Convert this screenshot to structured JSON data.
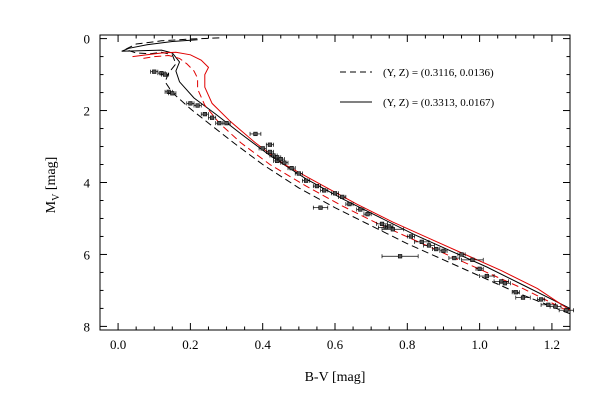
{
  "chart_data": {
    "type": "scatter",
    "title": "",
    "xlabel": "B-V [mag]",
    "ylabel_main": "M",
    "ylabel_sub": "V",
    "ylabel_tail": " [mag]",
    "xlim": [
      -0.05,
      1.25
    ],
    "ylim": [
      8.1,
      -0.1
    ],
    "y_inverted": true,
    "x_ticks": [
      0.0,
      0.2,
      0.4,
      0.6,
      0.8,
      1.0,
      1.2
    ],
    "x_tick_labels": [
      "0.0",
      "0.2",
      "0.4",
      "0.6",
      "0.8",
      "1.0",
      "1.2"
    ],
    "y_ticks": [
      0,
      2,
      4,
      6,
      8
    ],
    "y_tick_labels": [
      "0",
      "2",
      "4",
      "6",
      "8"
    ],
    "grid": false,
    "legend_position": "top-right",
    "legend": [
      {
        "label": "(Y, Z) = (0.3116, 0.0136)",
        "style": "dashed",
        "color": "#000000"
      },
      {
        "label": "(Y, Z) = (0.3313, 0.0167)",
        "style": "solid",
        "color": "#000000"
      }
    ],
    "series": [
      {
        "style": "dashed",
        "color": "#000000",
        "x": [
          0.28,
          0.2,
          0.12,
          0.05,
          0.02,
          0.05,
          0.09,
          0.12,
          0.15,
          0.16,
          0.14,
          0.13,
          0.15,
          0.2,
          0.25,
          0.32,
          0.4,
          0.5,
          0.6,
          0.7,
          0.8,
          0.9,
          1.0,
          1.1,
          1.2,
          1.25
        ],
        "y": [
          -0.02,
          0.01,
          0.06,
          0.15,
          0.3,
          0.4,
          0.42,
          0.38,
          0.45,
          0.7,
          0.95,
          1.2,
          1.5,
          1.95,
          2.35,
          2.9,
          3.5,
          4.15,
          4.7,
          5.2,
          5.7,
          6.15,
          6.6,
          7.05,
          7.45,
          7.65
        ]
      },
      {
        "style": "solid",
        "color": "#000000",
        "x": [
          0.22,
          0.15,
          0.08,
          0.03,
          0.01,
          0.06,
          0.12,
          0.15,
          0.17,
          0.16,
          0.17,
          0.21,
          0.27,
          0.34,
          0.42,
          0.52,
          0.62,
          0.72,
          0.82,
          0.92,
          1.02,
          1.12,
          1.21,
          1.25
        ],
        "y": [
          0.03,
          0.08,
          0.17,
          0.27,
          0.35,
          0.34,
          0.32,
          0.4,
          0.65,
          0.9,
          1.2,
          1.65,
          2.1,
          2.65,
          3.25,
          3.9,
          4.45,
          4.95,
          5.45,
          5.9,
          6.35,
          6.85,
          7.3,
          7.5
        ]
      },
      {
        "style": "dashed",
        "color": "#e00000",
        "x": [
          0.07,
          0.1,
          0.14,
          0.17,
          0.19,
          0.21,
          0.22,
          0.22,
          0.24,
          0.28,
          0.34,
          0.42,
          0.52,
          0.62,
          0.72,
          0.82,
          0.92,
          1.02,
          1.12,
          1.2,
          1.25
        ],
        "y": [
          0.55,
          0.5,
          0.47,
          0.55,
          0.7,
          0.9,
          1.1,
          1.4,
          1.85,
          2.35,
          2.9,
          3.5,
          4.1,
          4.65,
          5.15,
          5.6,
          6.05,
          6.5,
          6.95,
          7.35,
          7.6
        ]
      },
      {
        "style": "solid",
        "color": "#e00000",
        "x": [
          0.04,
          0.08,
          0.12,
          0.16,
          0.2,
          0.23,
          0.25,
          0.24,
          0.24,
          0.26,
          0.31,
          0.38,
          0.46,
          0.56,
          0.66,
          0.76,
          0.86,
          0.96,
          1.06,
          1.16,
          1.25
        ],
        "y": [
          0.5,
          0.45,
          0.4,
          0.38,
          0.45,
          0.6,
          0.8,
          1.0,
          1.35,
          1.8,
          2.3,
          2.9,
          3.5,
          4.05,
          4.6,
          5.1,
          5.55,
          6.0,
          6.45,
          6.95,
          7.55
        ]
      }
    ],
    "points": [
      {
        "x": 0.1,
        "y": 0.92,
        "xerr": 0.01
      },
      {
        "x": 0.12,
        "y": 0.96,
        "xerr": 0.01
      },
      {
        "x": 0.13,
        "y": 1.0,
        "xerr": 0.01
      },
      {
        "x": 0.14,
        "y": 1.48,
        "xerr": 0.01
      },
      {
        "x": 0.15,
        "y": 1.52,
        "xerr": 0.01
      },
      {
        "x": 0.2,
        "y": 1.8,
        "xerr": 0.01
      },
      {
        "x": 0.22,
        "y": 1.86,
        "xerr": 0.01
      },
      {
        "x": 0.24,
        "y": 2.1,
        "xerr": 0.01
      },
      {
        "x": 0.26,
        "y": 2.2,
        "xerr": 0.01
      },
      {
        "x": 0.28,
        "y": 2.35,
        "xerr": 0.01
      },
      {
        "x": 0.3,
        "y": 2.35,
        "xerr": 0.01
      },
      {
        "x": 0.38,
        "y": 2.65,
        "xerr": 0.015
      },
      {
        "x": 0.42,
        "y": 2.95,
        "xerr": 0.01
      },
      {
        "x": 0.4,
        "y": 3.05,
        "xerr": 0.01
      },
      {
        "x": 0.42,
        "y": 3.15,
        "xerr": 0.01
      },
      {
        "x": 0.43,
        "y": 3.25,
        "xerr": 0.01
      },
      {
        "x": 0.44,
        "y": 3.3,
        "xerr": 0.01
      },
      {
        "x": 0.44,
        "y": 3.4,
        "xerr": 0.01
      },
      {
        "x": 0.45,
        "y": 3.35,
        "xerr": 0.01
      },
      {
        "x": 0.46,
        "y": 3.45,
        "xerr": 0.01
      },
      {
        "x": 0.48,
        "y": 3.6,
        "xerr": 0.01
      },
      {
        "x": 0.5,
        "y": 3.75,
        "xerr": 0.01
      },
      {
        "x": 0.52,
        "y": 3.95,
        "xerr": 0.01
      },
      {
        "x": 0.55,
        "y": 4.1,
        "xerr": 0.01
      },
      {
        "x": 0.57,
        "y": 4.22,
        "xerr": 0.01
      },
      {
        "x": 0.6,
        "y": 4.3,
        "xerr": 0.01
      },
      {
        "x": 0.62,
        "y": 4.4,
        "xerr": 0.01
      },
      {
        "x": 0.64,
        "y": 4.6,
        "xerr": 0.01
      },
      {
        "x": 0.56,
        "y": 4.7,
        "xerr": 0.02
      },
      {
        "x": 0.67,
        "y": 4.75,
        "xerr": 0.01
      },
      {
        "x": 0.69,
        "y": 4.88,
        "xerr": 0.01
      },
      {
        "x": 0.73,
        "y": 5.15,
        "xerr": 0.015
      },
      {
        "x": 0.74,
        "y": 5.25,
        "xerr": 0.02
      },
      {
        "x": 0.76,
        "y": 5.3,
        "xerr": 0.03
      },
      {
        "x": 0.75,
        "y": 5.22,
        "xerr": 0.01
      },
      {
        "x": 0.81,
        "y": 5.5,
        "xerr": 0.01
      },
      {
        "x": 0.84,
        "y": 5.65,
        "xerr": 0.02
      },
      {
        "x": 0.86,
        "y": 5.75,
        "xerr": 0.015
      },
      {
        "x": 0.88,
        "y": 5.85,
        "xerr": 0.01
      },
      {
        "x": 0.9,
        "y": 5.9,
        "xerr": 0.01
      },
      {
        "x": 0.93,
        "y": 6.1,
        "xerr": 0.015
      },
      {
        "x": 0.95,
        "y": 6.0,
        "xerr": 0.01
      },
      {
        "x": 0.78,
        "y": 6.05,
        "xerr": 0.05
      },
      {
        "x": 0.98,
        "y": 6.15,
        "xerr": 0.03
      },
      {
        "x": 1.0,
        "y": 6.4,
        "xerr": 0.01
      },
      {
        "x": 1.02,
        "y": 6.6,
        "xerr": 0.02
      },
      {
        "x": 1.06,
        "y": 6.75,
        "xerr": 0.02
      },
      {
        "x": 1.07,
        "y": 6.8,
        "xerr": 0.015
      },
      {
        "x": 1.1,
        "y": 7.05,
        "xerr": 0.01
      },
      {
        "x": 1.12,
        "y": 7.2,
        "xerr": 0.02
      },
      {
        "x": 1.17,
        "y": 7.25,
        "xerr": 0.01
      },
      {
        "x": 1.19,
        "y": 7.4,
        "xerr": 0.02
      },
      {
        "x": 1.21,
        "y": 7.45,
        "xerr": 0.015
      },
      {
        "x": 1.24,
        "y": 7.55,
        "xerr": 0.02
      }
    ]
  }
}
